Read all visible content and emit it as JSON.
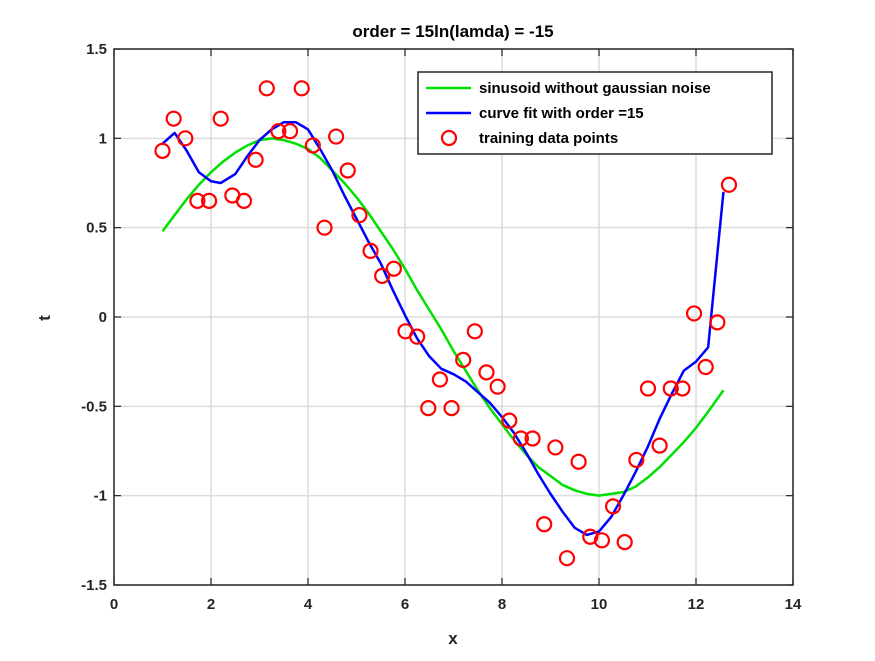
{
  "chart_data": {
    "type": "line",
    "title": "order = 15ln(lamda) = -15",
    "xlabel": "x",
    "ylabel": "t",
    "xlim": [
      0,
      14
    ],
    "ylim": [
      -1.5,
      1.5
    ],
    "xticks": [
      0,
      2,
      4,
      6,
      8,
      10,
      12,
      14
    ],
    "yticks": [
      -1.5,
      -1,
      -0.5,
      0,
      0.5,
      1,
      1.5
    ],
    "xtick_labels": [
      "0",
      "2",
      "4",
      "6",
      "8",
      "10",
      "12",
      "14"
    ],
    "ytick_labels": [
      "-1.5",
      "-1",
      "-0.5",
      "0",
      "0.5",
      "1",
      "1.5"
    ],
    "grid": true,
    "legend_position": "top-right",
    "series": [
      {
        "name": "sinusoid without gaussian noise",
        "kind": "line",
        "color": "#00e000",
        "function": "sin(x), x from 1 to 12.566",
        "x": [
          1.0,
          1.25,
          1.5,
          1.75,
          2.0,
          2.25,
          2.5,
          2.75,
          3.0,
          3.25,
          3.5,
          3.75,
          4.0,
          4.25,
          4.5,
          4.75,
          5.0,
          5.25,
          5.5,
          5.75,
          6.0,
          6.25,
          6.5,
          6.75,
          7.0,
          7.25,
          7.5,
          7.75,
          8.0,
          8.25,
          8.5,
          8.75,
          9.0,
          9.25,
          9.5,
          9.75,
          10.0,
          10.25,
          10.5,
          10.75,
          11.0,
          11.25,
          11.5,
          11.75,
          12.0,
          12.25,
          12.566
        ],
        "y": [
          0.48,
          0.57,
          0.66,
          0.74,
          0.81,
          0.87,
          0.92,
          0.96,
          0.99,
          1.0,
          0.99,
          0.97,
          0.94,
          0.89,
          0.82,
          0.75,
          0.67,
          0.58,
          0.48,
          0.38,
          0.27,
          0.15,
          0.04,
          -0.07,
          -0.19,
          -0.3,
          -0.41,
          -0.51,
          -0.6,
          -0.69,
          -0.77,
          -0.84,
          -0.89,
          -0.94,
          -0.97,
          -0.99,
          -1.0,
          -0.99,
          -0.98,
          -0.95,
          -0.9,
          -0.84,
          -0.77,
          -0.7,
          -0.62,
          -0.53,
          -0.41
        ]
      },
      {
        "name": "curve fit with order =15",
        "kind": "line",
        "color": "#0000ff",
        "x": [
          1.0,
          1.25,
          1.5,
          1.75,
          2.0,
          2.2,
          2.5,
          2.75,
          3.0,
          3.25,
          3.5,
          3.75,
          4.0,
          4.25,
          4.5,
          4.75,
          5.0,
          5.25,
          5.5,
          5.75,
          6.0,
          6.25,
          6.5,
          6.75,
          7.0,
          7.25,
          7.5,
          7.75,
          8.0,
          8.25,
          8.5,
          8.75,
          9.0,
          9.25,
          9.5,
          9.75,
          10.0,
          10.25,
          10.5,
          10.75,
          11.0,
          11.25,
          11.5,
          11.75,
          12.0,
          12.25,
          12.566
        ],
        "y": [
          0.97,
          1.03,
          0.93,
          0.81,
          0.76,
          0.75,
          0.8,
          0.9,
          0.99,
          1.05,
          1.09,
          1.09,
          1.05,
          0.94,
          0.82,
          0.68,
          0.55,
          0.42,
          0.3,
          0.15,
          0.01,
          -0.12,
          -0.22,
          -0.29,
          -0.32,
          -0.36,
          -0.42,
          -0.48,
          -0.56,
          -0.65,
          -0.76,
          -0.88,
          -0.99,
          -1.09,
          -1.18,
          -1.22,
          -1.2,
          -1.12,
          -1.0,
          -0.87,
          -0.73,
          -0.57,
          -0.43,
          -0.3,
          -0.25,
          -0.17,
          0.7
        ]
      },
      {
        "name": "training data points",
        "kind": "scatter",
        "color": "#ff0000",
        "marker": "circle",
        "x": [
          1.0,
          1.23,
          1.47,
          1.72,
          1.96,
          2.2,
          2.44,
          2.68,
          2.92,
          3.15,
          3.39,
          3.63,
          3.87,
          4.1,
          4.34,
          4.58,
          4.82,
          5.06,
          5.29,
          5.53,
          5.77,
          6.01,
          6.25,
          6.48,
          6.72,
          6.96,
          7.2,
          7.44,
          7.68,
          7.91,
          8.15,
          8.39,
          8.63,
          8.87,
          9.1,
          9.34,
          9.58,
          9.82,
          10.06,
          10.29,
          10.53,
          10.77,
          11.01,
          11.25,
          11.48,
          11.72,
          11.96,
          12.2,
          12.44,
          12.68
        ],
        "y": [
          0.93,
          1.11,
          1.0,
          0.65,
          0.65,
          1.11,
          0.68,
          0.65,
          0.88,
          1.28,
          1.04,
          1.04,
          1.28,
          0.96,
          0.5,
          1.01,
          0.82,
          0.57,
          0.37,
          0.23,
          0.27,
          -0.08,
          -0.11,
          -0.51,
          -0.35,
          -0.51,
          -0.24,
          -0.08,
          -0.31,
          -0.39,
          -0.58,
          -0.68,
          -0.68,
          -1.16,
          -0.73,
          -1.35,
          -0.81,
          -1.23,
          -1.25,
          -1.06,
          -1.26,
          -0.8,
          -0.4,
          -0.72,
          -0.4,
          -0.4,
          0.02,
          -0.28,
          -0.03,
          0.74
        ]
      }
    ]
  }
}
